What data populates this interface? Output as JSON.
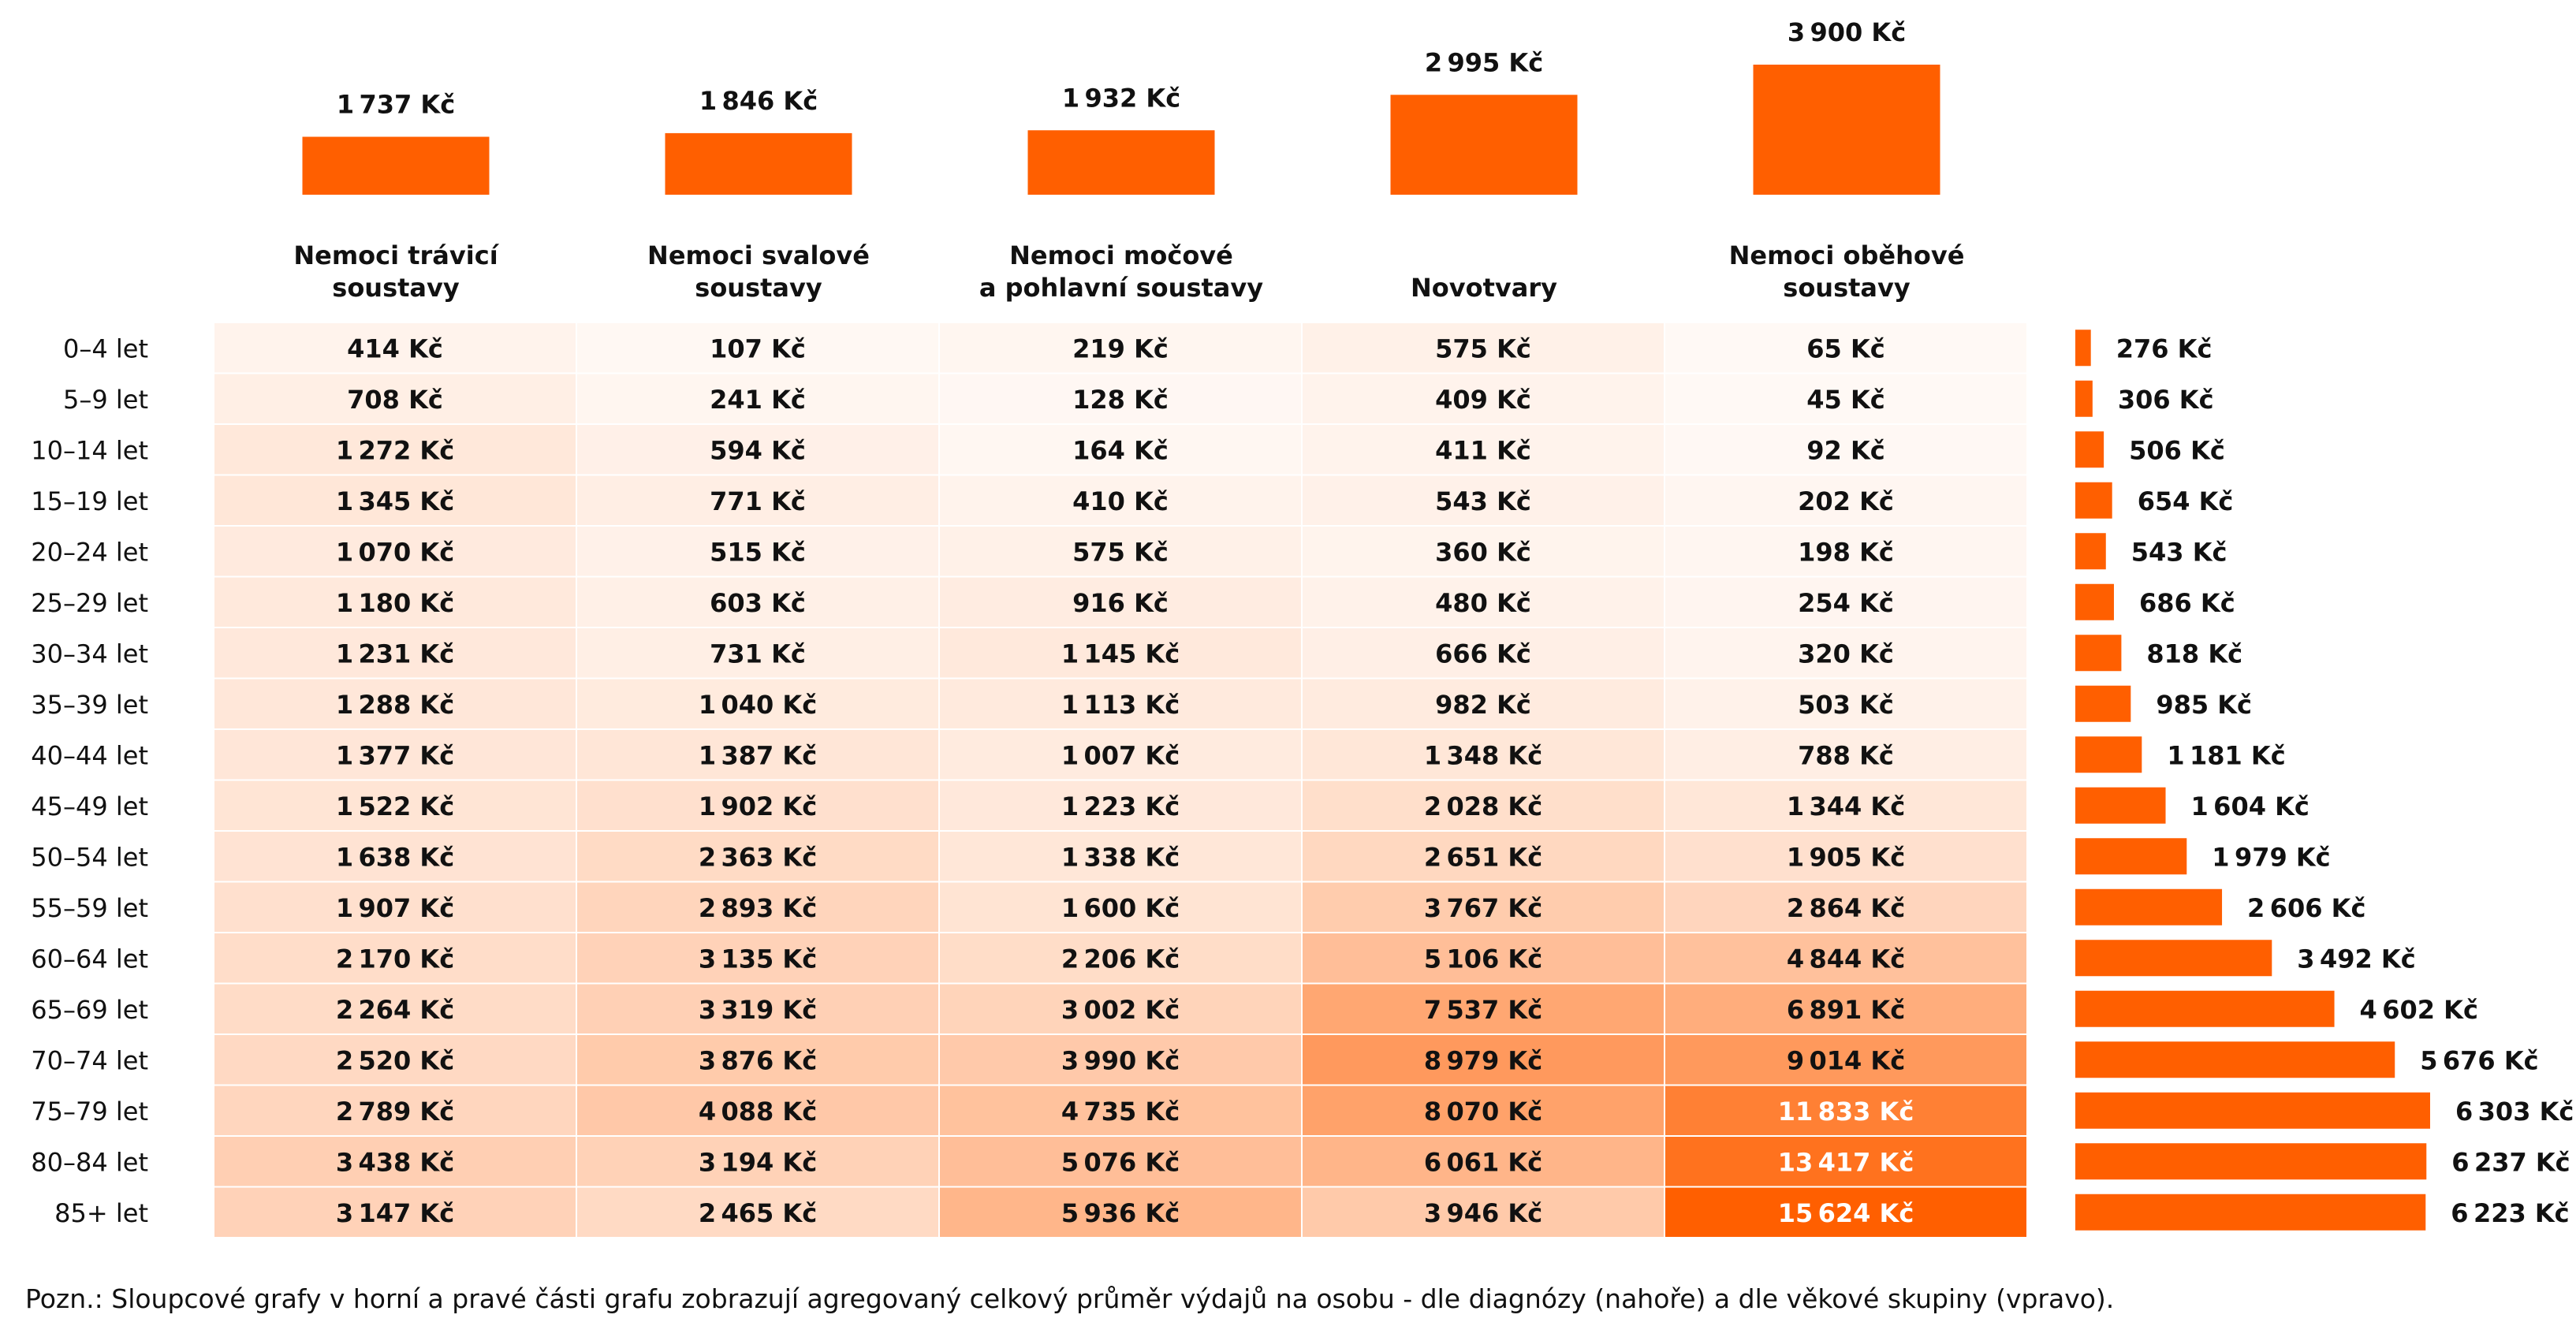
{
  "chart_data": {
    "type": "heatmap",
    "unit": "Kč",
    "categories": [
      "Nemoci trávicí soustavy",
      "Nemoci svalové soustavy",
      "Nemoci močové a pohlavní soustavy",
      "Novotvary",
      "Nemoci oběhové soustavy"
    ],
    "category_labels": [
      [
        "Nemoci trávicí",
        "soustavy"
      ],
      [
        "Nemoci svalové",
        "soustavy"
      ],
      [
        "Nemoci močové",
        "a pohlavní soustavy"
      ],
      [
        "Novotvary"
      ],
      [
        "Nemoci oběhové",
        "soustavy"
      ]
    ],
    "age_groups": [
      "0–4 let",
      "5–9 let",
      "10–14 let",
      "15–19 let",
      "20–24 let",
      "25–29 let",
      "30–34 let",
      "35–39 let",
      "40–44 let",
      "45–49 let",
      "50–54 let",
      "55–59 let",
      "60–64 let",
      "65–69 let",
      "70–74 let",
      "75–79 let",
      "80–84 let",
      "85+ let"
    ],
    "values": [
      [
        414,
        107,
        219,
        575,
        65
      ],
      [
        708,
        241,
        128,
        409,
        45
      ],
      [
        1272,
        594,
        164,
        411,
        92
      ],
      [
        1345,
        771,
        410,
        543,
        202
      ],
      [
        1070,
        515,
        575,
        360,
        198
      ],
      [
        1180,
        603,
        916,
        480,
        254
      ],
      [
        1231,
        731,
        1145,
        666,
        320
      ],
      [
        1288,
        1040,
        1113,
        982,
        503
      ],
      [
        1377,
        1387,
        1007,
        1348,
        788
      ],
      [
        1522,
        1902,
        1223,
        2028,
        1344
      ],
      [
        1638,
        2363,
        1338,
        2651,
        1905
      ],
      [
        1907,
        2893,
        1600,
        3767,
        2864
      ],
      [
        2170,
        3135,
        2206,
        5106,
        4844
      ],
      [
        2264,
        3319,
        3002,
        7537,
        6891
      ],
      [
        2520,
        3876,
        3990,
        8979,
        9014
      ],
      [
        2789,
        4088,
        4735,
        8070,
        11833
      ],
      [
        3438,
        3194,
        5076,
        6061,
        13417
      ],
      [
        3147,
        2465,
        5936,
        3946,
        15624
      ]
    ],
    "top_bars": [
      1737,
      1846,
      1932,
      2995,
      3900
    ],
    "right_bars": [
      276,
      306,
      506,
      654,
      543,
      686,
      818,
      985,
      1181,
      1604,
      1979,
      2606,
      3492,
      4602,
      5676,
      6303,
      6237,
      6223
    ],
    "colors": {
      "bar": "#ff5f00",
      "cell_low": "#fffaf7",
      "cell_high": "#ff5f00"
    }
  },
  "note": "Pozn.: Sloupcové grafy v horní a pravé části grafu zobrazují agregovaný celkový průměr výdajů na osobu - dle diagnózy (nahoře) a dle věkové skupiny (vpravo)."
}
